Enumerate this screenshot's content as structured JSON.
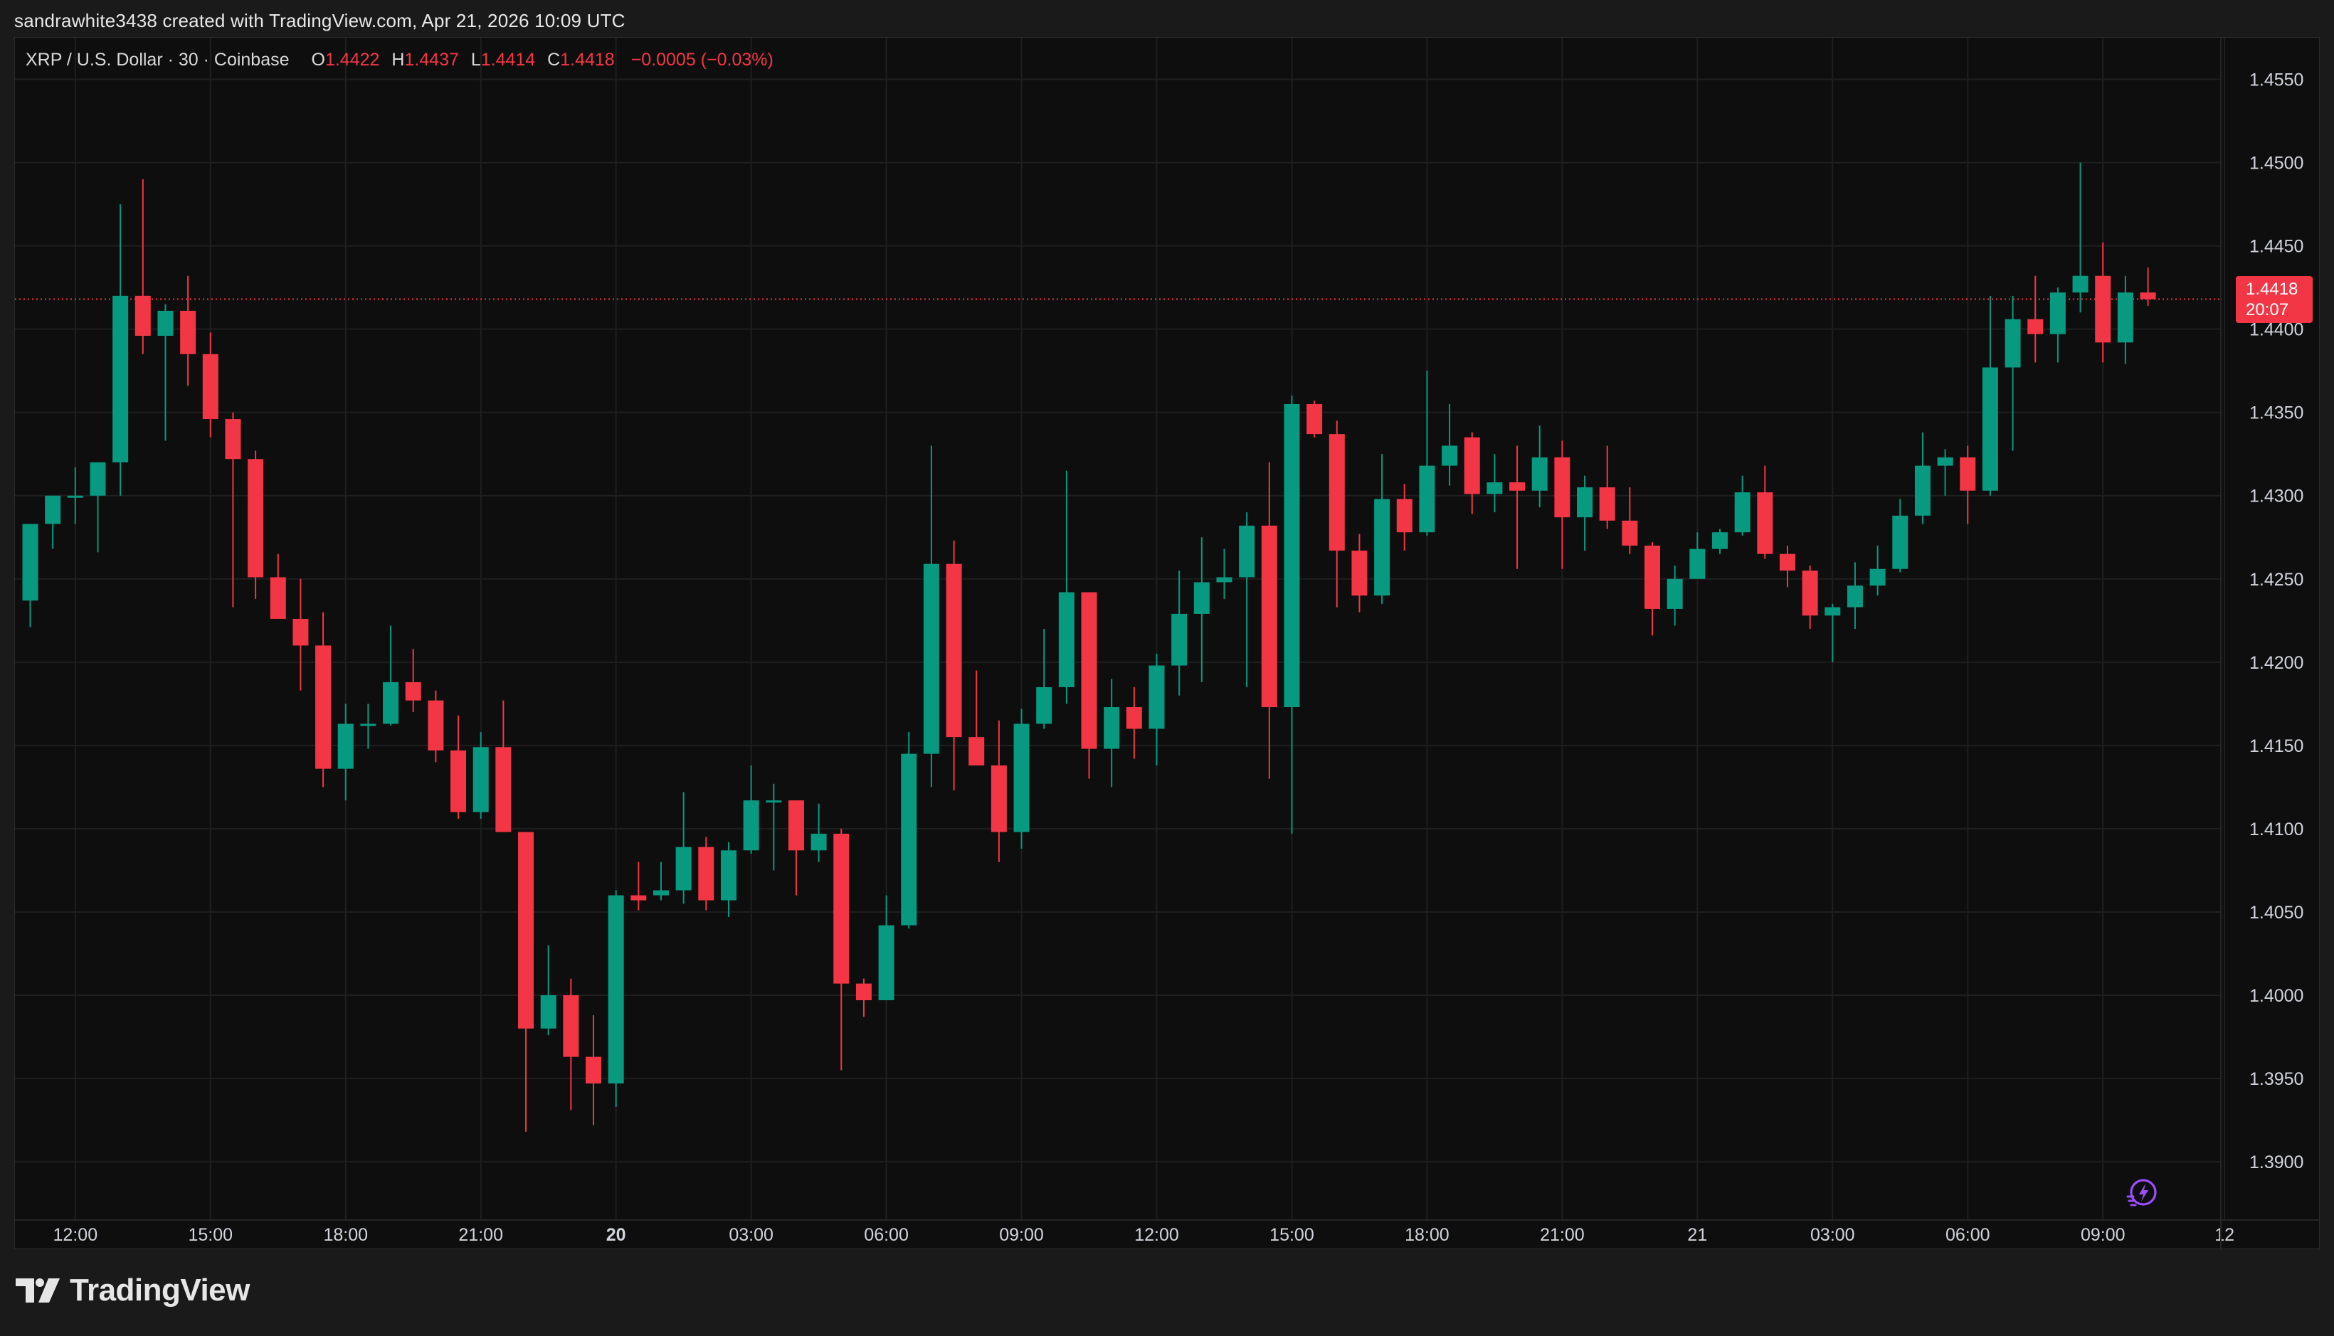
{
  "attribution": "sandrawhite3438 created with TradingView.com, Apr 21, 2026 10:09 UTC",
  "legend": {
    "symbol": "XRP / U.S. Dollar · 30 · Coinbase",
    "open_key": "O",
    "open": "1.4422",
    "high_key": "H",
    "high": "1.4437",
    "low_key": "L",
    "low": "1.4414",
    "close_key": "C",
    "close": "1.4418",
    "change": "−0.0005 (−0.03%)"
  },
  "price_tag": {
    "price": "1.4418",
    "countdown": "20:07"
  },
  "footer": {
    "brand": "TradingView"
  },
  "icons": {
    "logo": "tradingview-logo-icon",
    "replay": "lightning-replay-icon"
  },
  "colors": {
    "up": "#089981",
    "down": "#f23645",
    "background": "#0e0e0e",
    "grid": "#1f1f1f",
    "text": "#d1d4dc"
  },
  "chart_data": {
    "type": "candlestick",
    "ylim": [
      1.3865,
      1.4575
    ],
    "yticks": [
      1.39,
      1.395,
      1.4,
      1.405,
      1.41,
      1.415,
      1.42,
      1.425,
      1.43,
      1.435,
      1.44,
      1.445,
      1.45,
      1.455
    ],
    "ytick_labels": [
      "1.3900",
      "1.3950",
      "1.4000",
      "1.4050",
      "1.4100",
      "1.4150",
      "1.4200",
      "1.4250",
      "1.4300",
      "1.4350",
      "1.4400",
      "1.4450",
      "1.4500",
      "1.4550"
    ],
    "xticks": [
      {
        "index": 2,
        "label": "12:00",
        "bold": false
      },
      {
        "index": 8,
        "label": "15:00",
        "bold": false
      },
      {
        "index": 14,
        "label": "18:00",
        "bold": false
      },
      {
        "index": 20,
        "label": "21:00",
        "bold": false
      },
      {
        "index": 26,
        "label": "20",
        "bold": true
      },
      {
        "index": 32,
        "label": "03:00",
        "bold": false
      },
      {
        "index": 38,
        "label": "06:00",
        "bold": false
      },
      {
        "index": 44,
        "label": "09:00",
        "bold": false
      },
      {
        "index": 50,
        "label": "12:00",
        "bold": false
      },
      {
        "index": 56,
        "label": "15:00",
        "bold": false
      },
      {
        "index": 62,
        "label": "18:00",
        "bold": false
      },
      {
        "index": 68,
        "label": "21:00",
        "bold": false
      },
      {
        "index": 74,
        "label": "21",
        "bold": false
      },
      {
        "index": 80,
        "label": "03:00",
        "bold": false
      },
      {
        "index": 86,
        "label": "06:00",
        "bold": false
      },
      {
        "index": 92,
        "label": "09:00",
        "bold": false
      },
      {
        "index": 97.4,
        "label": "12",
        "bold": false
      }
    ],
    "last_price": 1.4418,
    "candles": [
      [
        1.4237,
        1.4283,
        1.4221,
        1.4283
      ],
      [
        1.4283,
        1.43,
        1.4268,
        1.43
      ],
      [
        1.43,
        1.4317,
        1.4283,
        1.43
      ],
      [
        1.43,
        1.432,
        1.4266,
        1.432
      ],
      [
        1.432,
        1.4475,
        1.43,
        1.442
      ],
      [
        1.442,
        1.449,
        1.4385,
        1.4396
      ],
      [
        1.4396,
        1.4415,
        1.4333,
        1.4411
      ],
      [
        1.4411,
        1.4432,
        1.4366,
        1.4385
      ],
      [
        1.4385,
        1.4398,
        1.4335,
        1.4346
      ],
      [
        1.4346,
        1.435,
        1.4233,
        1.4322
      ],
      [
        1.4322,
        1.4327,
        1.4238,
        1.4251
      ],
      [
        1.4251,
        1.4265,
        1.4228,
        1.4226
      ],
      [
        1.4226,
        1.425,
        1.4183,
        1.421
      ],
      [
        1.421,
        1.423,
        1.4125,
        1.4136
      ],
      [
        1.4136,
        1.4175,
        1.4117,
        1.4163
      ],
      [
        1.4163,
        1.4175,
        1.4148,
        1.4163
      ],
      [
        1.4163,
        1.4222,
        1.4162,
        1.4188
      ],
      [
        1.4188,
        1.4208,
        1.417,
        1.4177
      ],
      [
        1.4177,
        1.4183,
        1.414,
        1.4147
      ],
      [
        1.4147,
        1.4168,
        1.4106,
        1.411
      ],
      [
        1.411,
        1.4158,
        1.4106,
        1.4149
      ],
      [
        1.4149,
        1.4177,
        1.4098,
        1.4098
      ],
      [
        1.4098,
        1.4098,
        1.3918,
        1.398
      ],
      [
        1.398,
        1.403,
        1.3976,
        1.4
      ],
      [
        1.4,
        1.401,
        1.3931,
        1.3963
      ],
      [
        1.3963,
        1.3988,
        1.3922,
        1.3947
      ],
      [
        1.3947,
        1.4063,
        1.3933,
        1.406
      ],
      [
        1.406,
        1.408,
        1.4051,
        1.4057
      ],
      [
        1.406,
        1.408,
        1.4057,
        1.4063
      ],
      [
        1.4063,
        1.4122,
        1.4055,
        1.4089
      ],
      [
        1.4089,
        1.4095,
        1.4051,
        1.4057
      ],
      [
        1.4057,
        1.4092,
        1.4047,
        1.4087
      ],
      [
        1.4087,
        1.4138,
        1.4085,
        1.4117
      ],
      [
        1.4117,
        1.4127,
        1.4075,
        1.4117
      ],
      [
        1.4117,
        1.4117,
        1.406,
        1.4087
      ],
      [
        1.4087,
        1.4115,
        1.408,
        1.4097
      ],
      [
        1.4097,
        1.41,
        1.3955,
        1.4007
      ],
      [
        1.4007,
        1.401,
        1.3987,
        1.3997
      ],
      [
        1.3997,
        1.406,
        1.3997,
        1.4042
      ],
      [
        1.4042,
        1.4158,
        1.404,
        1.4145
      ],
      [
        1.4145,
        1.433,
        1.4125,
        1.4259
      ],
      [
        1.4259,
        1.4273,
        1.4123,
        1.4155
      ],
      [
        1.4155,
        1.4195,
        1.4138,
        1.4138
      ],
      [
        1.4138,
        1.4165,
        1.408,
        1.4098
      ],
      [
        1.4098,
        1.4172,
        1.4088,
        1.4163
      ],
      [
        1.4163,
        1.422,
        1.416,
        1.4185
      ],
      [
        1.4185,
        1.4315,
        1.4175,
        1.4242
      ],
      [
        1.4242,
        1.4242,
        1.413,
        1.4148
      ],
      [
        1.4148,
        1.419,
        1.4125,
        1.4173
      ],
      [
        1.4173,
        1.4185,
        1.4142,
        1.416
      ],
      [
        1.416,
        1.4205,
        1.4138,
        1.4198
      ],
      [
        1.4198,
        1.4255,
        1.418,
        1.4229
      ],
      [
        1.4229,
        1.4275,
        1.4188,
        1.4248
      ],
      [
        1.4248,
        1.4268,
        1.4238,
        1.4251
      ],
      [
        1.4251,
        1.429,
        1.4185,
        1.4282
      ],
      [
        1.4282,
        1.432,
        1.413,
        1.4173
      ],
      [
        1.4173,
        1.436,
        1.4097,
        1.4355
      ],
      [
        1.4355,
        1.4357,
        1.4335,
        1.4337
      ],
      [
        1.4337,
        1.4345,
        1.4233,
        1.4267
      ],
      [
        1.4267,
        1.4277,
        1.423,
        1.424
      ],
      [
        1.424,
        1.4325,
        1.4235,
        1.4298
      ],
      [
        1.4298,
        1.4307,
        1.4267,
        1.4278
      ],
      [
        1.4278,
        1.4375,
        1.4276,
        1.4318
      ],
      [
        1.4318,
        1.4355,
        1.4306,
        1.433
      ],
      [
        1.4335,
        1.4338,
        1.4289,
        1.4301
      ],
      [
        1.4301,
        1.4325,
        1.429,
        1.4308
      ],
      [
        1.4308,
        1.433,
        1.4256,
        1.4303
      ],
      [
        1.4303,
        1.4342,
        1.4293,
        1.4323
      ],
      [
        1.4323,
        1.4333,
        1.4256,
        1.4287
      ],
      [
        1.4287,
        1.4312,
        1.4267,
        1.4305
      ],
      [
        1.4305,
        1.433,
        1.428,
        1.4285
      ],
      [
        1.4285,
        1.4305,
        1.4265,
        1.427
      ],
      [
        1.427,
        1.4272,
        1.4216,
        1.4232
      ],
      [
        1.4232,
        1.4258,
        1.4222,
        1.425
      ],
      [
        1.425,
        1.4278,
        1.425,
        1.4268
      ],
      [
        1.4268,
        1.428,
        1.4265,
        1.4278
      ],
      [
        1.4278,
        1.4312,
        1.4276,
        1.4302
      ],
      [
        1.4302,
        1.4318,
        1.4262,
        1.4265
      ],
      [
        1.4265,
        1.427,
        1.4245,
        1.4255
      ],
      [
        1.4255,
        1.4258,
        1.422,
        1.4228
      ],
      [
        1.4228,
        1.4235,
        1.42,
        1.4233
      ],
      [
        1.4233,
        1.426,
        1.422,
        1.4246
      ],
      [
        1.4246,
        1.427,
        1.424,
        1.4256
      ],
      [
        1.4256,
        1.4298,
        1.4254,
        1.4288
      ],
      [
        1.4288,
        1.4338,
        1.4283,
        1.4318
      ],
      [
        1.4318,
        1.4328,
        1.43,
        1.4323
      ],
      [
        1.4323,
        1.433,
        1.4283,
        1.4303
      ],
      [
        1.4303,
        1.442,
        1.43,
        1.4377
      ],
      [
        1.4377,
        1.442,
        1.4327,
        1.4406
      ],
      [
        1.4406,
        1.4432,
        1.438,
        1.4397
      ],
      [
        1.4397,
        1.4425,
        1.438,
        1.4422
      ],
      [
        1.4422,
        1.45,
        1.441,
        1.4432
      ],
      [
        1.4432,
        1.4452,
        1.438,
        1.4392
      ],
      [
        1.4392,
        1.4432,
        1.4379,
        1.4422
      ],
      [
        1.4422,
        1.4437,
        1.4414,
        1.4418
      ]
    ]
  }
}
